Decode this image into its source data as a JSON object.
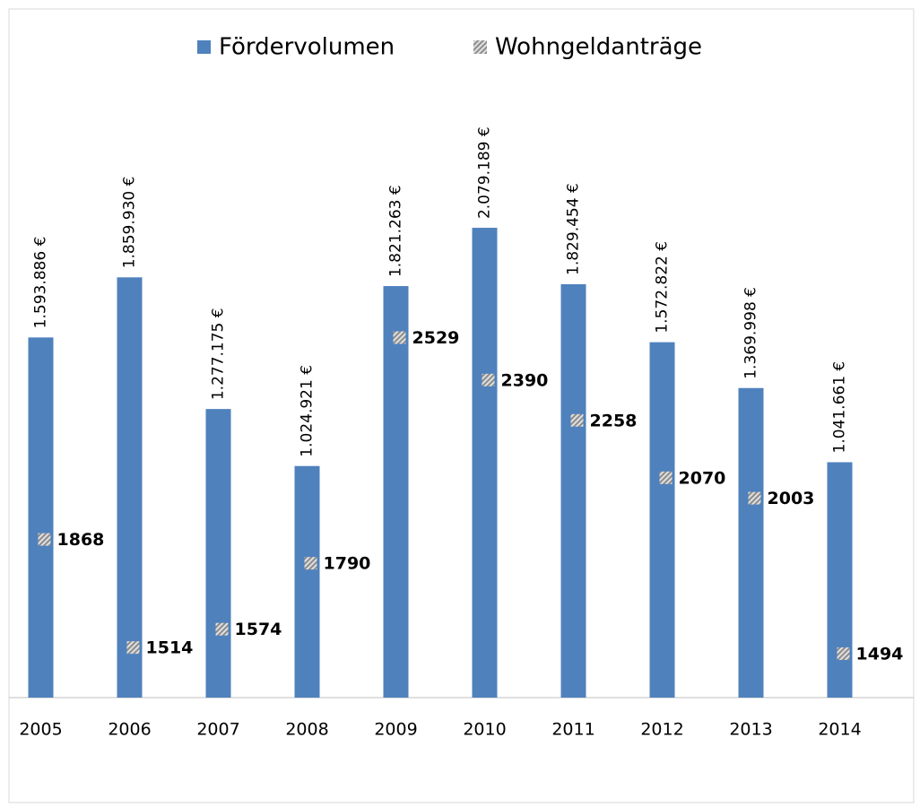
{
  "chart_data": {
    "type": "bar",
    "categories": [
      "2005",
      "2006",
      "2007",
      "2008",
      "2009",
      "2010",
      "2011",
      "2012",
      "2013",
      "2014"
    ],
    "series": [
      {
        "name": "Fördervolumen",
        "color": "#4f81bd",
        "values": [
          1593886,
          1859930,
          1277175,
          1024921,
          1821263,
          2079189,
          1829454,
          1572822,
          1369998,
          1041661
        ],
        "value_labels": [
          "1.593.886 €",
          "1.859.930 €",
          "1.277.175 €",
          "1.024.921 €",
          "1.821.263 €",
          "2.079.189 €",
          "1.829.454 €",
          "1.572.822 €",
          "1.369.998 €",
          "1.041.661 €"
        ]
      },
      {
        "name": "Wohngeldanträge",
        "color": "#a6a6a6",
        "axis": "y2",
        "values": [
          1868,
          1514,
          1574,
          1790,
          2529,
          2390,
          2258,
          2070,
          2003,
          1494
        ]
      }
    ],
    "ylim": [
      0,
      2500000
    ],
    "y2lim": [
      1350,
      3200
    ],
    "legend": "top"
  }
}
